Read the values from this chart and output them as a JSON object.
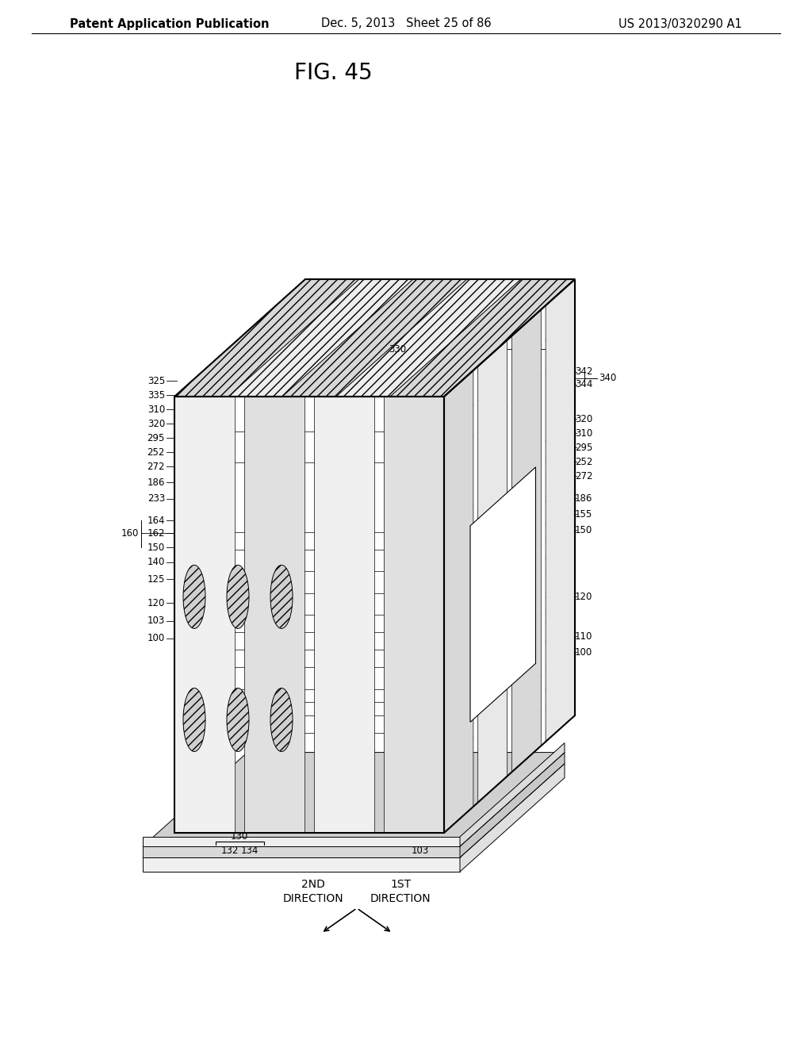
{
  "bg_color": "#ffffff",
  "header_left": "Patent Application Publication",
  "header_mid": "Dec. 5, 2013   Sheet 25 of 86",
  "header_right": "US 2013/0320290 A1",
  "title_text": "FIG. 45",
  "header_fontsize": 10.5,
  "title_fontsize": 20,
  "label_fontsize": 8.5,
  "dir_2nd_line1": "2ND",
  "dir_2nd_line2": "DIRECTION",
  "dir_1st_line1": "1ST",
  "dir_1st_line2": "DIRECTION"
}
